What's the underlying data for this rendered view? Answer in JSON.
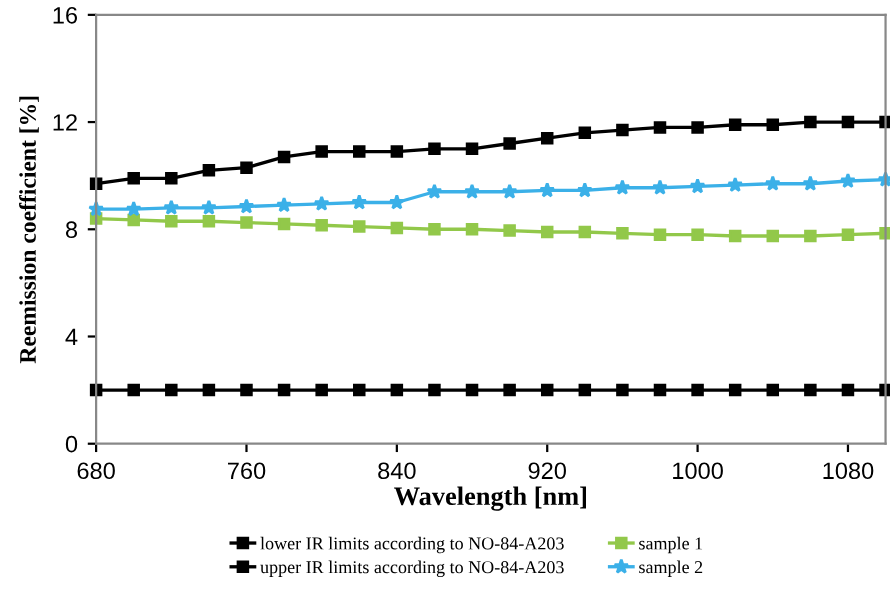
{
  "chart_data": {
    "type": "line",
    "xlabel": "Wavelength [nm]",
    "ylabel": "Reemission coefficient [%]",
    "x": [
      680,
      700,
      720,
      740,
      760,
      780,
      800,
      820,
      840,
      860,
      880,
      900,
      920,
      940,
      960,
      980,
      1000,
      1020,
      1040,
      1060,
      1080,
      1100
    ],
    "series": [
      {
        "name": "lower IR limits according to NO-84-A203",
        "color": "#000000",
        "marker": "square",
        "values": [
          2,
          2,
          2,
          2,
          2,
          2,
          2,
          2,
          2,
          2,
          2,
          2,
          2,
          2,
          2,
          2,
          2,
          2,
          2,
          2,
          2,
          2
        ]
      },
      {
        "name": "upper IR limits according to NO-84-A203",
        "color": "#000000",
        "marker": "square",
        "values": [
          9.7,
          9.9,
          9.9,
          10.2,
          10.3,
          10.7,
          10.9,
          10.9,
          10.9,
          11.0,
          11.0,
          11.2,
          11.4,
          11.6,
          11.7,
          11.8,
          11.8,
          11.9,
          11.9,
          12.0,
          12.0,
          12.0
        ]
      },
      {
        "name": "sample 1",
        "color": "#92c84a",
        "marker": "square",
        "values": [
          8.4,
          8.35,
          8.3,
          8.3,
          8.25,
          8.2,
          8.15,
          8.1,
          8.05,
          8.0,
          8.0,
          7.95,
          7.9,
          7.9,
          7.85,
          7.8,
          7.8,
          7.75,
          7.75,
          7.75,
          7.8,
          7.85
        ]
      },
      {
        "name": "sample 2",
        "color": "#3bb0e8",
        "marker": "star",
        "values": [
          8.75,
          8.75,
          8.8,
          8.8,
          8.85,
          8.9,
          8.95,
          9.0,
          9.0,
          9.4,
          9.4,
          9.4,
          9.45,
          9.45,
          9.55,
          9.55,
          9.6,
          9.65,
          9.7,
          9.7,
          9.8,
          9.85
        ]
      }
    ],
    "xlim": [
      680,
      1100
    ],
    "xticks": [
      680,
      760,
      840,
      920,
      1000,
      1080
    ],
    "ylim": [
      0,
      16
    ],
    "yticks": [
      0,
      4,
      8,
      12,
      16
    ],
    "grid": false,
    "legend": "bottom",
    "line_style": "solid"
  }
}
